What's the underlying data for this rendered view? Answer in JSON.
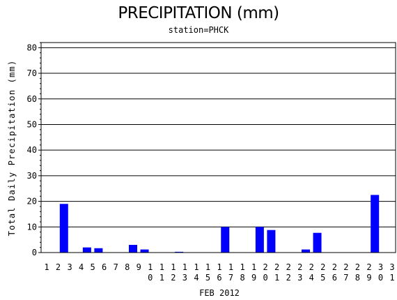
{
  "chart_data": {
    "type": "bar",
    "title": "PRECIPITATION (mm)",
    "subtitle": "station=PHCK",
    "xlabel": "FEB 2012",
    "ylabel": "Total Daily Precipitation (mm)",
    "ylim": [
      0,
      82
    ],
    "yticks": [
      0,
      10,
      20,
      30,
      40,
      50,
      60,
      70,
      80
    ],
    "grid": true,
    "bar_color": "#0000ff",
    "categories": [
      "1",
      "2",
      "3",
      "4",
      "5",
      "6",
      "7",
      "8",
      "9",
      "10",
      "11",
      "12",
      "13",
      "14",
      "15",
      "16",
      "17",
      "18",
      "19",
      "20",
      "21",
      "22",
      "23",
      "24",
      "25",
      "26",
      "27",
      "28",
      "29",
      "30",
      "31"
    ],
    "values": [
      0,
      19.0,
      0,
      2.0,
      1.7,
      0,
      0,
      3.0,
      1.2,
      0,
      0,
      0.3,
      0,
      0,
      0,
      10.0,
      0,
      0,
      10.0,
      8.8,
      0,
      0,
      1.2,
      7.7,
      0,
      0,
      0,
      0,
      22.5,
      0,
      0
    ]
  }
}
